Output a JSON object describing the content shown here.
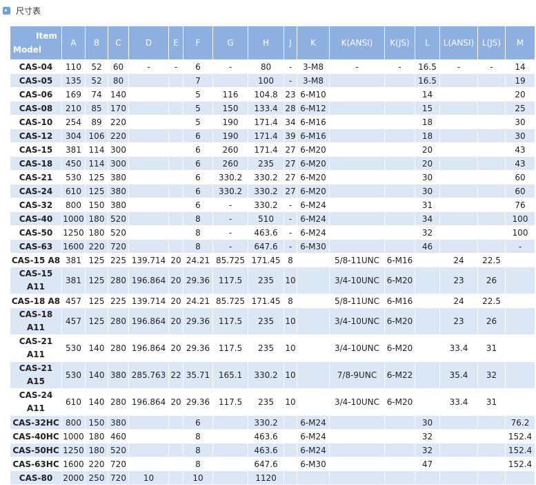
{
  "header": {
    "title": "尺寸表"
  },
  "table": {
    "corner": [
      "Item",
      "Model"
    ],
    "columns": [
      "A",
      "B",
      "C",
      "D",
      "E",
      "F",
      "G",
      "H",
      "J",
      "K",
      "K(ANSI)",
      "K(JS)",
      "L",
      "L(ANSI)",
      "L(JS)",
      "M"
    ],
    "rows": [
      [
        "CAS-04",
        "110",
        "52",
        "60",
        "-",
        "-",
        "6",
        "-",
        "80",
        "-",
        "3-M8",
        "-",
        "-",
        "16.5",
        "-",
        "-",
        "14"
      ],
      [
        "CAS-05",
        "135",
        "52",
        "80",
        null,
        null,
        "7",
        null,
        "100",
        "-",
        "3-M8",
        null,
        null,
        "16.5",
        null,
        null,
        "19"
      ],
      [
        "CAS-06",
        "169",
        "74",
        "140",
        null,
        null,
        "5",
        "116",
        "104.8",
        "23",
        "6-M10",
        null,
        null,
        "14",
        null,
        null,
        "20"
      ],
      [
        "CAS-08",
        "210",
        "85",
        "170",
        null,
        null,
        "5",
        "150",
        "133.4",
        "28",
        "6-M12",
        null,
        null,
        "15",
        null,
        null,
        "25"
      ],
      [
        "CAS-10",
        "254",
        "89",
        "220",
        null,
        null,
        "5",
        "190",
        "171.4",
        "34",
        "6-M16",
        null,
        null,
        "18",
        null,
        null,
        "30"
      ],
      [
        "CAS-12",
        "304",
        "106",
        "220",
        null,
        null,
        "6",
        "190",
        "171.4",
        "39",
        "6-M16",
        null,
        null,
        "18",
        null,
        null,
        "30"
      ],
      [
        "CAS-15",
        "381",
        "114",
        "300",
        null,
        null,
        "6",
        "260",
        "171.4",
        "27",
        "6-M20",
        null,
        null,
        "20",
        null,
        null,
        "43"
      ],
      [
        "CAS-18",
        "450",
        "114",
        "300",
        null,
        null,
        "6",
        "260",
        "235",
        "27",
        "6-M20",
        null,
        null,
        "20",
        null,
        null,
        "43"
      ],
      [
        "CAS-21",
        "530",
        "125",
        "380",
        null,
        null,
        "6",
        "330.2",
        "330.2",
        "27",
        "6-M20",
        null,
        null,
        "30",
        null,
        null,
        "60"
      ],
      [
        "CAS-24",
        "610",
        "125",
        "380",
        null,
        null,
        "6",
        "330.2",
        "330.2",
        "27",
        "6-M20",
        null,
        null,
        "30",
        null,
        null,
        "60"
      ],
      [
        "CAS-32",
        "800",
        "150",
        "380",
        null,
        null,
        "6",
        "-",
        "330.2",
        "-",
        "6-M24",
        null,
        null,
        "31",
        null,
        null,
        "76"
      ],
      [
        "CAS-40",
        "1000",
        "180",
        "520",
        null,
        null,
        "8",
        "-",
        "510",
        "-",
        "6-M24",
        null,
        null,
        "34",
        null,
        null,
        "100"
      ],
      [
        "CAS-50",
        "1250",
        "180",
        "520",
        null,
        null,
        "8",
        "-",
        "463.6",
        "-",
        "6-M24",
        null,
        null,
        "32",
        null,
        null,
        "100"
      ],
      [
        "CAS-63",
        "1600",
        "220",
        "720",
        null,
        null,
        "8",
        "-",
        "647.6",
        "-",
        "6-M30",
        null,
        null,
        "46",
        null,
        null,
        "-"
      ],
      [
        "CAS-15 A8",
        "381",
        "125",
        "225",
        "139.714",
        "20",
        "24.21",
        "85.725",
        "171.45",
        "8",
        null,
        "5/8-11UNC",
        "6-M16",
        null,
        "24",
        "22.5",
        null
      ],
      [
        "CAS-15 A11",
        "381",
        "125",
        "280",
        "196.864",
        "20",
        "29.36",
        "117.5",
        "235",
        "10",
        null,
        "3/4-10UNC",
        "6-M20",
        null,
        "23",
        "26",
        null
      ],
      [
        "CAS-18 A8",
        "457",
        "125",
        "225",
        "139.714",
        "20",
        "24.21",
        "85.725",
        "171.45",
        "8",
        null,
        "5/8-11UNC",
        "6-M16",
        null,
        "24",
        "22.5",
        null
      ],
      [
        "CAS-18 A11",
        "457",
        "125",
        "280",
        "196.864",
        "20",
        "29.36",
        "117.5",
        "235",
        "10",
        null,
        "3/4-10UNC",
        "6-M20",
        null,
        "23",
        "26",
        null
      ],
      [
        "CAS-21 A11",
        "530",
        "140",
        "280",
        "196.864",
        "20",
        "29.36",
        "117.5",
        "235",
        "10",
        null,
        "3/4-10UNC",
        "6-M20",
        null,
        "33.4",
        "31",
        null
      ],
      [
        "CAS-21 A15",
        "530",
        "140",
        "380",
        "285.763",
        "22",
        "35.71",
        "165.1",
        "330.2",
        "10",
        null,
        "7/8-9UNC",
        "6-M22",
        null,
        "35.4",
        "32",
        null
      ],
      [
        "CAS-24 A11",
        "610",
        "140",
        "280",
        "196.864",
        "20",
        "29.36",
        "117.5",
        "235",
        "10",
        null,
        "3/4-10UNC",
        "6-M20",
        null,
        "33.4",
        "31",
        null
      ],
      [
        "CAS-32HC",
        "800",
        "150",
        "380",
        null,
        null,
        "6",
        null,
        "330.2",
        null,
        "6-M24",
        null,
        null,
        "30",
        null,
        null,
        "76.2"
      ],
      [
        "CAS-40HC",
        "1000",
        "180",
        "460",
        null,
        null,
        "8",
        null,
        "463.6",
        null,
        "6-M24",
        null,
        null,
        "32",
        null,
        null,
        "152.4"
      ],
      [
        "CAS-50HC",
        "1250",
        "180",
        "520",
        null,
        null,
        "8",
        null,
        "463.6",
        null,
        "6-M24",
        null,
        null,
        "32",
        null,
        null,
        "152.4"
      ],
      [
        "CAS-63HC",
        "1600",
        "220",
        "720",
        null,
        null,
        "8",
        null,
        "647.6",
        null,
        "6-M30",
        null,
        null,
        "47",
        null,
        null,
        "152.4"
      ],
      [
        "CAS-80",
        "2000",
        "250",
        "720",
        "10",
        null,
        "10",
        null,
        "1120",
        null,
        null,
        null,
        null,
        null,
        null,
        null,
        null
      ]
    ]
  }
}
